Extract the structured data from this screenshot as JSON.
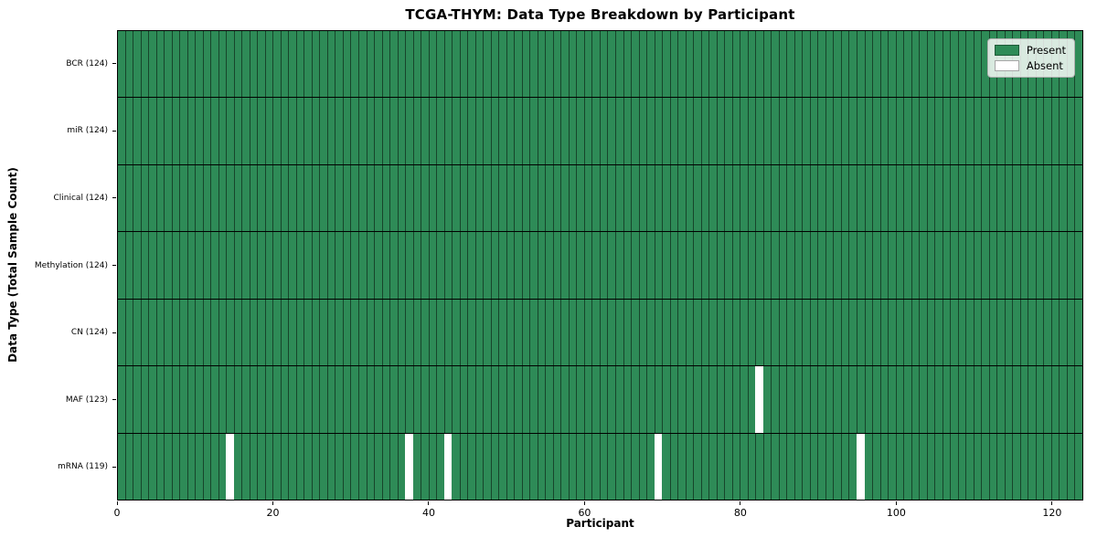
{
  "chart_data": {
    "type": "heatmap",
    "title": "TCGA-THYM: Data Type Breakdown by Participant",
    "xlabel": "Participant",
    "ylabel": "Data Type (Total Sample Count)",
    "n_participants": 124,
    "x_range": [
      0,
      124
    ],
    "x_ticks": [
      0,
      20,
      40,
      60,
      80,
      100,
      120
    ],
    "rows": [
      {
        "label": "BCR (124)",
        "data_type": "BCR",
        "total_samples": 124,
        "absent_participants": []
      },
      {
        "label": "miR (124)",
        "data_type": "miR",
        "total_samples": 124,
        "absent_participants": []
      },
      {
        "label": "Clinical (124)",
        "data_type": "Clinical",
        "total_samples": 124,
        "absent_participants": []
      },
      {
        "label": "Methylation (124)",
        "data_type": "Methylation",
        "total_samples": 124,
        "absent_participants": []
      },
      {
        "label": "CN (124)",
        "data_type": "CN",
        "total_samples": 124,
        "absent_participants": []
      },
      {
        "label": "MAF (123)",
        "data_type": "MAF",
        "total_samples": 123,
        "absent_participants": [
          82
        ]
      },
      {
        "label": "mRNA (119)",
        "data_type": "mRNA",
        "total_samples": 119,
        "absent_participants": [
          14,
          37,
          42,
          69,
          95
        ]
      }
    ],
    "legend": [
      {
        "label": "Present",
        "color": "#2e8b57"
      },
      {
        "label": "Absent",
        "color": "#ffffff"
      }
    ],
    "legend_position": "upper right",
    "grid": true,
    "colors": {
      "present": "#2e8b57",
      "absent": "#ffffff",
      "cell_edge": "rgba(0,0,0,0.5)",
      "row_separator": "#000000",
      "legend_border": "#b0b0b0",
      "spine": "#000000"
    }
  }
}
